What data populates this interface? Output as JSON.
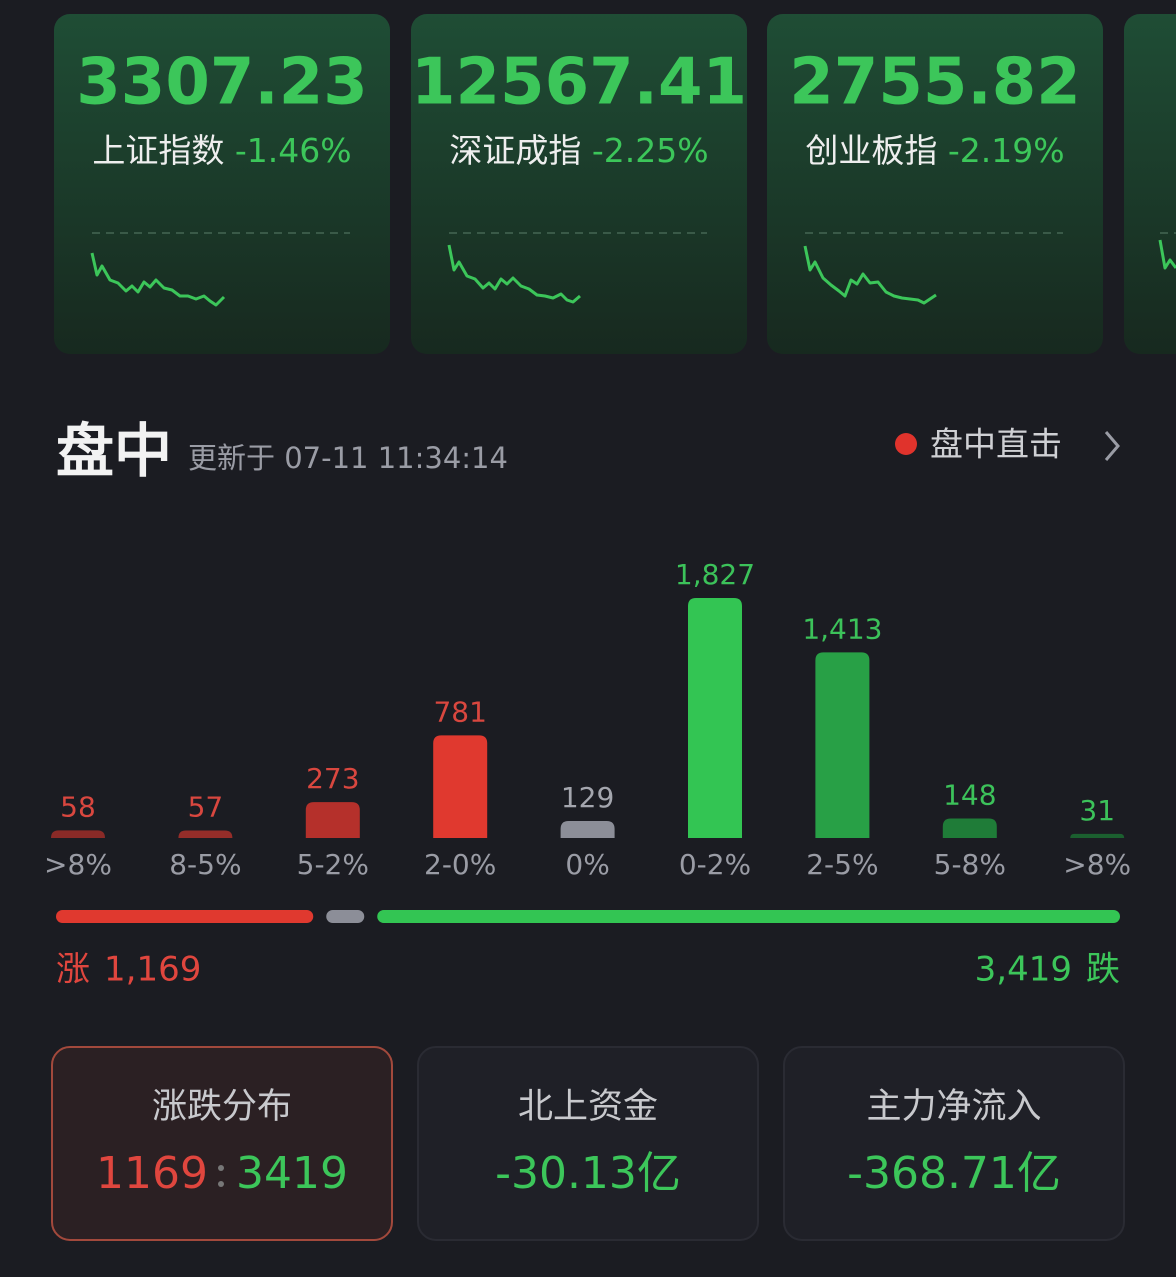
{
  "index_cards": [
    {
      "value": "3307.23",
      "name": "上证指数",
      "change": "-1.46%"
    },
    {
      "value": "12567.41",
      "name": "深证成指",
      "change": "-2.25%"
    },
    {
      "value": "2755.82",
      "name": "创业板指",
      "change": "-2.19%"
    }
  ],
  "header": {
    "title": "盘中",
    "updated": "更新于 07-11 11:34:14",
    "link": "盘中直击"
  },
  "chart_data": {
    "type": "bar",
    "categories": [
      ">8%",
      "8-5%",
      "5-2%",
      "2-0%",
      "0%",
      "0-2%",
      "2-5%",
      "5-8%",
      ">8%"
    ],
    "values": [
      58,
      57,
      273,
      781,
      129,
      1827,
      1413,
      148,
      31
    ],
    "value_labels": [
      "58",
      "57",
      "273",
      "781",
      "129",
      "1,827",
      "1,413",
      "148",
      "31"
    ],
    "colors": [
      "#8a2a27",
      "#952d29",
      "#b5302b",
      "#e0392f",
      "#8c8e98",
      "#33c553",
      "#28a046",
      "#1f7c38",
      "#1b5f2f"
    ],
    "label_colors": [
      "#d9473f",
      "#d9473f",
      "#d9473f",
      "#d9473f",
      "#a4a6ae",
      "#3cc25a",
      "#3cc25a",
      "#3cc25a",
      "#3cc25a"
    ]
  },
  "summary": {
    "rise_label": "涨",
    "rise": "1,169",
    "fall": "3,419",
    "fall_label": "跌"
  },
  "stat_cards": [
    {
      "title": "涨跌分布",
      "rise": "1169",
      "fall": "3419"
    },
    {
      "title": "北上资金",
      "value": "-30.13亿"
    },
    {
      "title": "主力净流入",
      "value": "-368.71亿"
    }
  ]
}
